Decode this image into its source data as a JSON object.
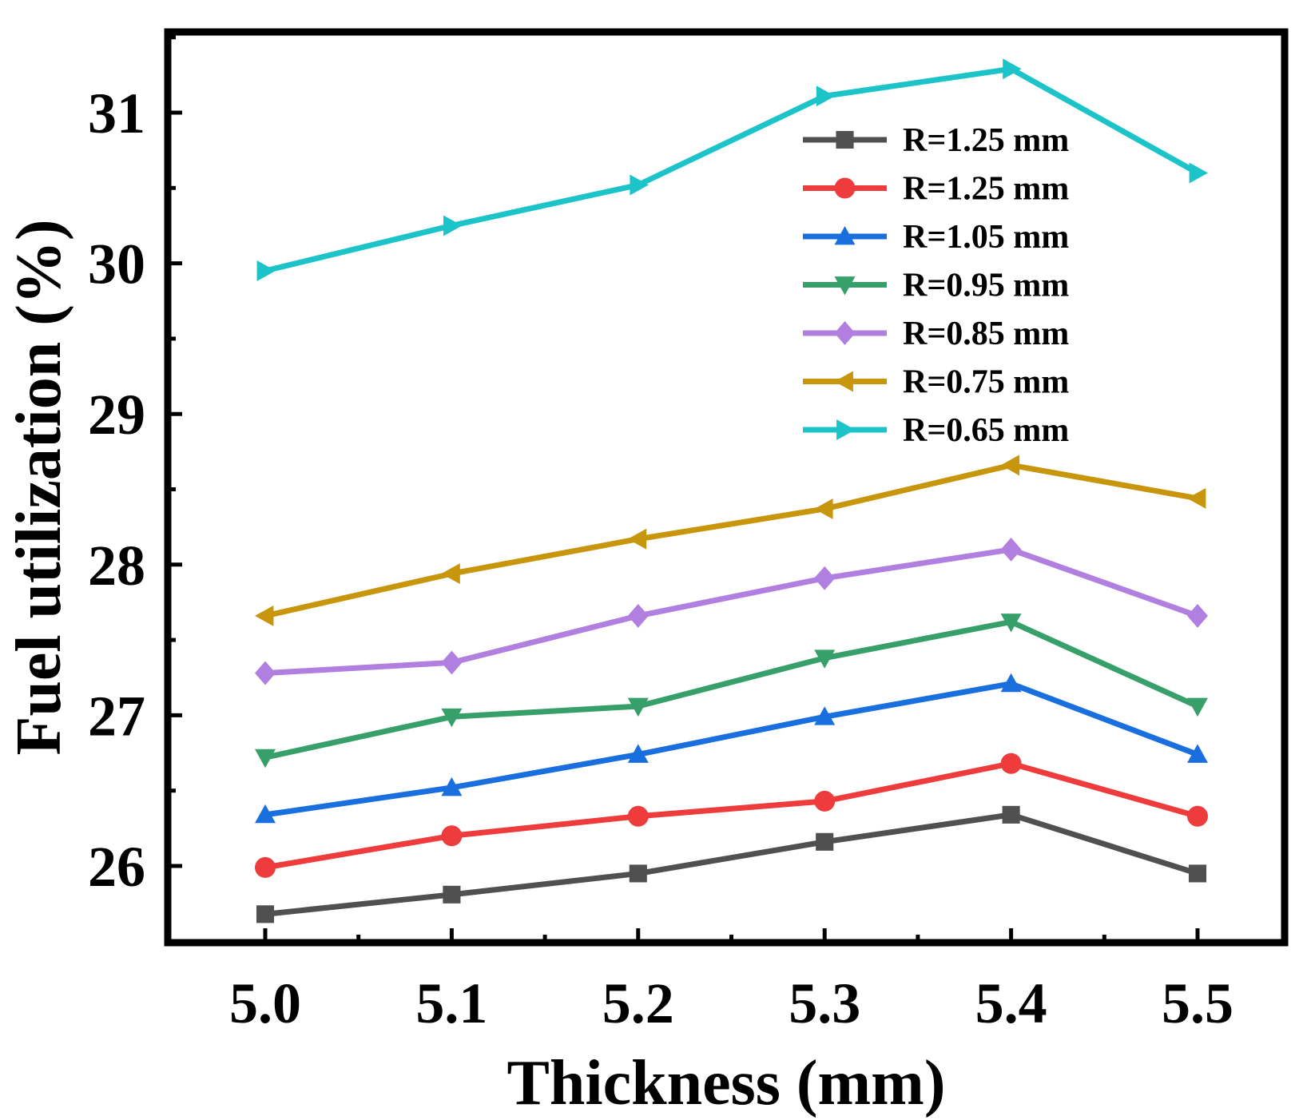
{
  "chart_data": {
    "type": "line",
    "title": "",
    "xlabel": "Thickness (mm)",
    "ylabel": "Fuel utilization (%)",
    "x": [
      5.0,
      5.1,
      5.2,
      5.3,
      5.4,
      5.5
    ],
    "x_tick_labels": [
      "5.0",
      "5.1",
      "5.2",
      "5.3",
      "5.4",
      "5.5"
    ],
    "xlim": [
      4.95,
      5.55
    ],
    "ylim": [
      25.5,
      31.5
    ],
    "y_ticks": [
      26,
      27,
      28,
      29,
      30,
      31
    ],
    "y_tick_labels": [
      "26",
      "27",
      "28",
      "29",
      "30",
      "31"
    ],
    "legend_position": "top-right",
    "grid": false,
    "series": [
      {
        "name": "R=1.25 mm",
        "color": "#505050",
        "marker": "square",
        "values": [
          25.68,
          25.81,
          25.95,
          26.16,
          26.34,
          25.95
        ]
      },
      {
        "name": "R=1.25 mm",
        "color": "#EE3B3B",
        "marker": "circle",
        "values": [
          25.99,
          26.2,
          26.33,
          26.43,
          26.68,
          26.33
        ]
      },
      {
        "name": "R=1.05 mm",
        "color": "#1A6FDF",
        "marker": "triangle-up",
        "values": [
          26.34,
          26.52,
          26.74,
          26.99,
          27.21,
          26.74
        ]
      },
      {
        "name": "R=0.95 mm",
        "color": "#37A06A",
        "marker": "triangle-down",
        "values": [
          26.72,
          26.99,
          27.06,
          27.38,
          27.62,
          27.06
        ]
      },
      {
        "name": "R=0.85 mm",
        "color": "#B07FE0",
        "marker": "diamond",
        "values": [
          27.28,
          27.35,
          27.66,
          27.91,
          28.1,
          27.66
        ]
      },
      {
        "name": "R=0.75 mm",
        "color": "#C8960C",
        "marker": "triangle-left",
        "values": [
          27.66,
          27.94,
          28.17,
          28.37,
          28.66,
          28.44
        ]
      },
      {
        "name": "R=0.65 mm",
        "color": "#1CC3C8",
        "marker": "triangle-right",
        "values": [
          29.95,
          30.25,
          30.52,
          31.11,
          31.29,
          30.6
        ]
      }
    ]
  }
}
